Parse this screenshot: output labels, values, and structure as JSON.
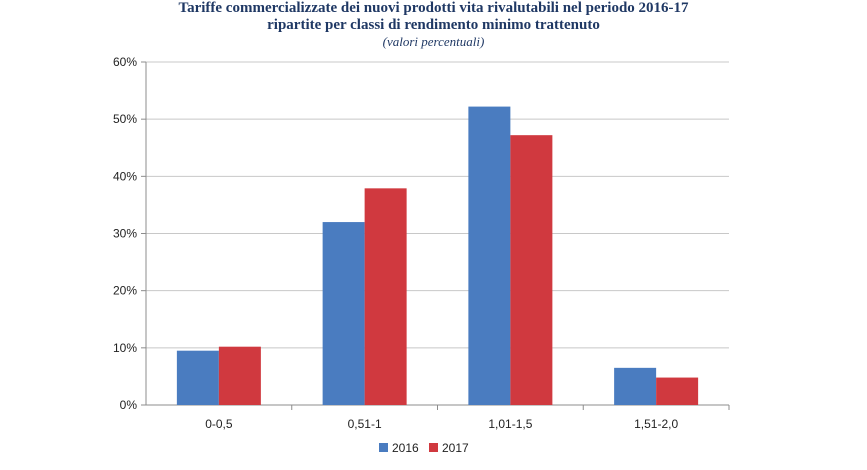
{
  "chart_data": {
    "type": "bar",
    "title_lines": [
      "Tariffe commercializzate dei nuovi prodotti vita rivalutabili nel periodo 2016-17",
      "ripartite per classi di rendimento minimo trattenuto"
    ],
    "subtitle": "(valori percentuali)",
    "categories": [
      "0-0,5",
      "0,51-1",
      "1,01-1,5",
      "1,51-2,0"
    ],
    "series": [
      {
        "name": "2016",
        "color": "#4a7cc0",
        "values": [
          9.5,
          32,
          52.2,
          6.5
        ]
      },
      {
        "name": "2017",
        "color": "#d0393f",
        "values": [
          10.2,
          37.9,
          47.2,
          4.8
        ]
      }
    ],
    "y_ticks": [
      "0%",
      "10%",
      "20%",
      "30%",
      "40%",
      "50%",
      "60%"
    ],
    "ylim": [
      0,
      60
    ],
    "grid": true,
    "legend_position": "bottom"
  }
}
